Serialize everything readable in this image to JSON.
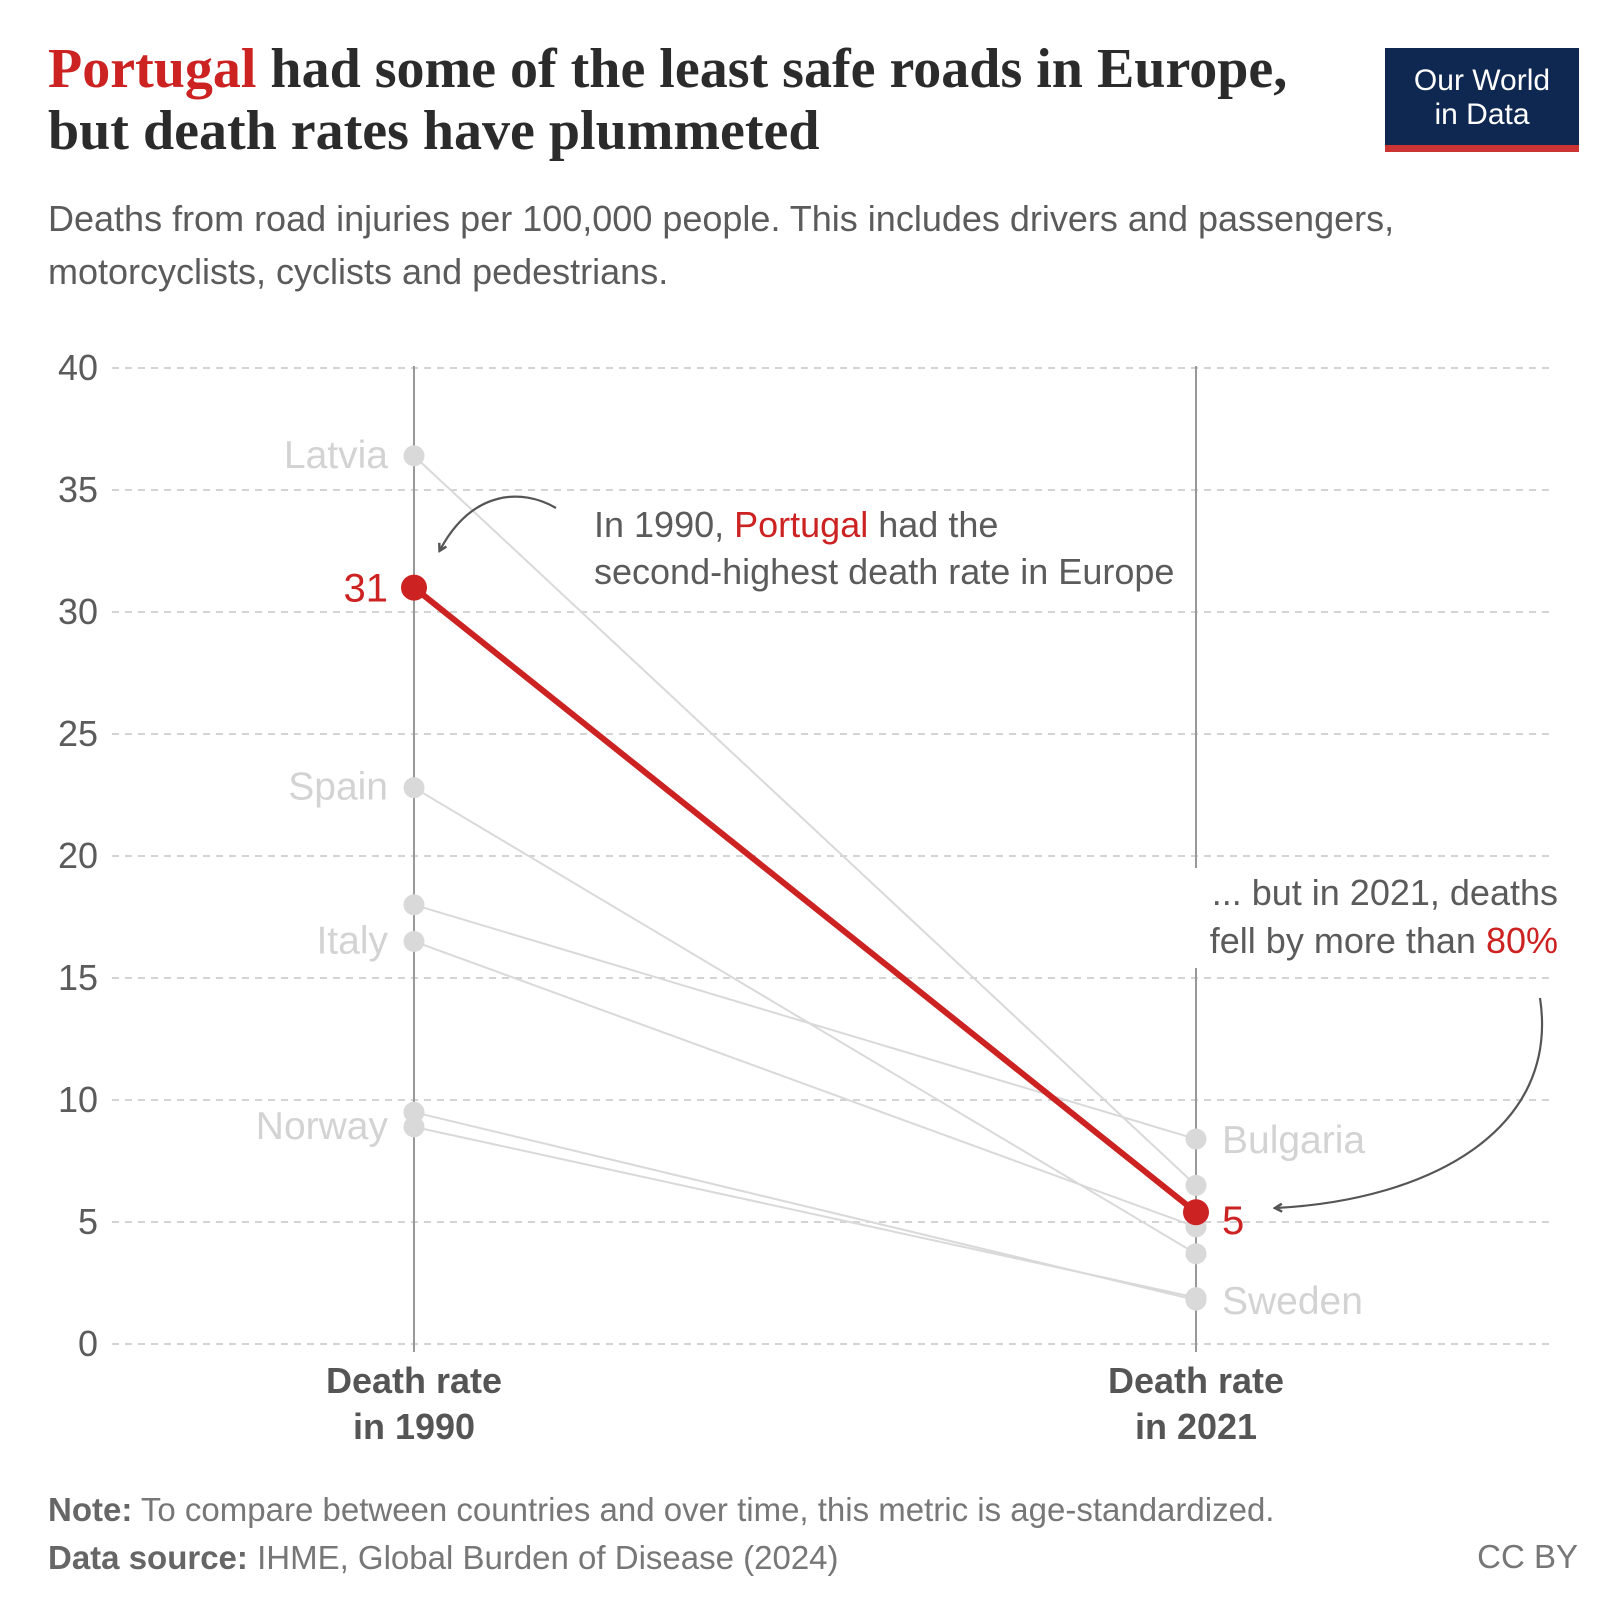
{
  "title": {
    "highlight": "Portugal",
    "rest": "had some of the least safe roads in Europe, but death rates have plummeted"
  },
  "subtitle": "Deaths from road injuries per 100,000 people. This includes drivers and passengers, motorcyclists, cyclists and pedestrians.",
  "logo": {
    "line1": "Our World",
    "line2": "in Data"
  },
  "chart_data": {
    "type": "slope",
    "ylim": [
      0,
      40
    ],
    "yticks": [
      0,
      5,
      10,
      15,
      20,
      25,
      30,
      35,
      40
    ],
    "columns": [
      "Death rate in 1990",
      "Death rate in 2021"
    ],
    "column_labels": [
      [
        "Death rate",
        "in 1990"
      ],
      [
        "Death rate",
        "in 2021"
      ]
    ],
    "series": [
      {
        "name": "Latvia",
        "start": 36.4,
        "end": 6.5,
        "label_left": "Latvia",
        "label_right": ""
      },
      {
        "name": "Spain",
        "start": 22.8,
        "end": 3.7,
        "label_left": "Spain",
        "label_right": ""
      },
      {
        "name": "Bulgaria",
        "start": 18.0,
        "end": 8.4,
        "label_left": "",
        "label_right": "Bulgaria"
      },
      {
        "name": "Italy",
        "start": 16.5,
        "end": 4.8,
        "label_left": "Italy",
        "label_right": ""
      },
      {
        "name": "Sweden",
        "start": 9.5,
        "end": 1.8,
        "label_left": "",
        "label_right": "Sweden"
      },
      {
        "name": "Norway",
        "start": 8.9,
        "end": 1.9,
        "label_left": "Norway",
        "label_right": ""
      }
    ],
    "highlight": {
      "name": "Portugal",
      "start": 31,
      "end": 5.4,
      "start_label": "31",
      "end_label": "5"
    },
    "annotations": {
      "top": {
        "line1_a": "In 1990,",
        "line1_hl": "Portugal",
        "line1_b": "had the",
        "line2": "second-highest death rate in Europe"
      },
      "bottom": {
        "line1": "... but in 2021, deaths",
        "line2_a": "fell by more than",
        "line2_hl": "80%"
      }
    },
    "colors": {
      "highlight": "#cc2222",
      "context": "#d9d9d9",
      "grid": "#d4d4d4",
      "axis": "#999999",
      "text": "#5b5b5b",
      "context_label": "#d3d3d3"
    }
  },
  "footer": {
    "note_label": "Note:",
    "note_text": "To compare between countries and over time, this metric is age-standardized.",
    "source_label": "Data source:",
    "source_text": "IHME, Global Burden of Disease (2024)",
    "license": "CC BY"
  }
}
